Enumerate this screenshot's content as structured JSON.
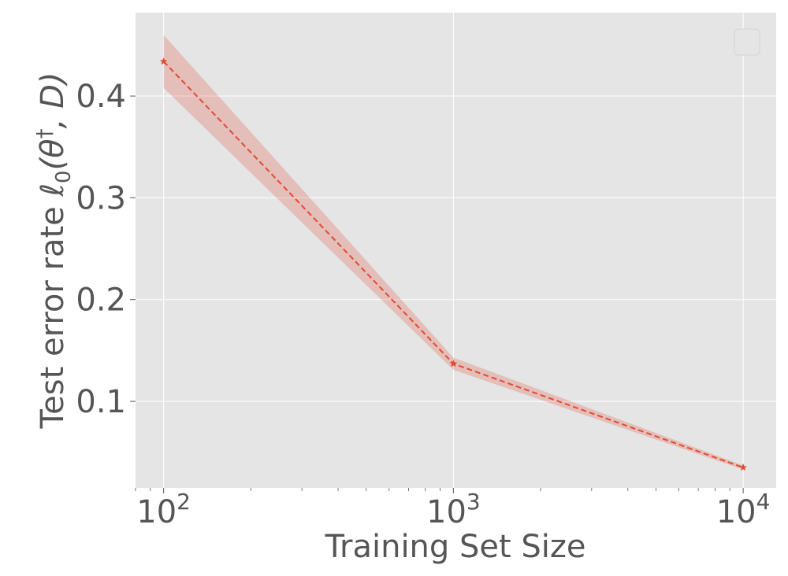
{
  "chart_data": {
    "type": "line",
    "xlabel": "Training Set Size",
    "ylabel_prefix": "Test error rate ",
    "ylabel_math": "ℓ",
    "ylabel_sub": "0",
    "ylabel_mid": "(θ",
    "ylabel_sup": "†",
    "ylabel_end": ", D)",
    "x_scale": "log",
    "xlim": [
      80,
      13000
    ],
    "ylim": [
      0.015,
      0.482
    ],
    "grid": true,
    "legend": "top-right (empty)",
    "x_ticks": [
      {
        "value": 100,
        "base": "10",
        "exp": "2"
      },
      {
        "value": 1000,
        "base": "10",
        "exp": "3"
      },
      {
        "value": 10000,
        "base": "10",
        "exp": "4"
      }
    ],
    "y_ticks": [
      {
        "value": 0.1,
        "label": "0.1"
      },
      {
        "value": 0.2,
        "label": "0.2"
      },
      {
        "value": 0.3,
        "label": "0.3"
      },
      {
        "value": 0.4,
        "label": "0.4"
      }
    ],
    "series": [
      {
        "x": [
          100,
          1000,
          10000
        ],
        "y": [
          0.434,
          0.137,
          0.035
        ],
        "lower": [
          0.408,
          0.131,
          0.033
        ],
        "upper": [
          0.46,
          0.143,
          0.037
        ],
        "color": "#E24A33",
        "band_color": "#E24A33",
        "line_style": "dashed",
        "marker": "star"
      }
    ],
    "colors": {
      "plot_background": "#E5E5E5",
      "grid": "#FFFFFF",
      "text": "#555555"
    }
  }
}
